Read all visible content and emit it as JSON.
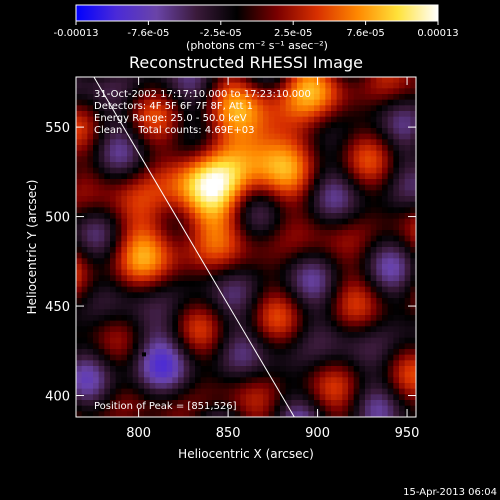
{
  "chart_data": {
    "type": "heatmap",
    "title": "Reconstructed RHESSI Image",
    "xlabel": "Heliocentric X (arcsec)",
    "ylabel": "Heliocentric Y (arcsec)",
    "xlim": [
      765,
      955
    ],
    "ylim": [
      388,
      578
    ],
    "x_ticks": [
      800,
      850,
      900,
      950
    ],
    "y_ticks": [
      400,
      450,
      500,
      550
    ],
    "colorbar": {
      "ticks": [
        "-0.00013",
        "-7.6e-05",
        "-2.5e-05",
        "2.5e-05",
        "7.6e-05",
        "0.00013"
      ],
      "unit_label": "(photons cm⁻² s⁻¹ asec⁻²)",
      "range": [
        -0.00013,
        0.00013
      ]
    },
    "annotations": [
      "31-Oct-2002 17:17:10.000 to 17:23:10.000",
      "Detectors: 4F 5F 6F 7F 8F, Att 1",
      "Energy Range: 25.0 - 50.0 keV",
      "Clean     Total counts: 4.69E+03"
    ],
    "peak_label": "Position of Peak = [851,526]",
    "peak_position": [
      851,
      526
    ],
    "limb_line": [
      [
        775,
        578
      ],
      [
        887,
        388
      ]
    ],
    "marker_position": [
      803,
      423
    ],
    "timestamp": "15-Apr-2013 06:04",
    "color_scale": [
      "#0000ff",
      "#4a2ad8",
      "#6a44a8",
      "#3a1a3a",
      "#000000",
      "#7a0000",
      "#d83000",
      "#ff8800",
      "#ffe23a",
      "#ffffff"
    ]
  }
}
